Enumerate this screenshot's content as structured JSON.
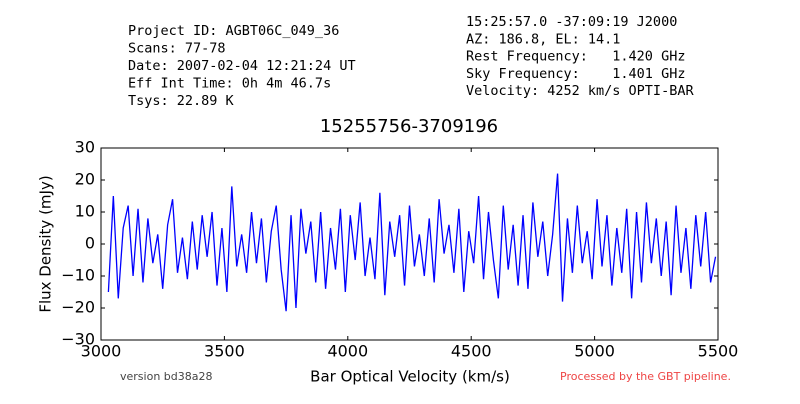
{
  "chart_data": {
    "type": "line",
    "header_left": [
      "Project ID: AGBT06C_049_36",
      "Scans: 77-78",
      "Date: 2007-02-04 12:21:24 UT",
      "Eff Int Time: 0h 4m 46.7s",
      "Tsys: 22.89 K"
    ],
    "header_right": [
      "15:25:57.0 -37:09:19 J2000",
      "AZ: 186.8, EL: 14.1",
      "Rest Frequency:   1.420 GHz",
      "Sky Frequency:    1.401 GHz",
      "Velocity: 4252 km/s OPTI-BAR"
    ],
    "title": "15255756-3709196",
    "xlabel": "Bar Optical Velocity (km/s)",
    "ylabel": "Flux Density (mJy)",
    "footer_left": "version bd38a28",
    "footer_right": "Processed by the GBT pipeline.",
    "xlim": [
      3000,
      5500
    ],
    "xticks": [
      3000,
      3500,
      4000,
      4500,
      5000,
      5500
    ],
    "ylim": [
      -30,
      30
    ],
    "yticks": [
      {
        "value": -30,
        "label": "−30"
      },
      {
        "value": -20,
        "label": "−20"
      },
      {
        "value": -10,
        "label": "−10"
      },
      0,
      10,
      20,
      30
    ],
    "x": [
      3030,
      3050,
      3070,
      3090,
      3110,
      3130,
      3150,
      3170,
      3190,
      3210,
      3230,
      3250,
      3270,
      3290,
      3310,
      3330,
      3350,
      3370,
      3390,
      3410,
      3430,
      3450,
      3470,
      3490,
      3510,
      3530,
      3550,
      3570,
      3590,
      3610,
      3630,
      3650,
      3670,
      3690,
      3710,
      3730,
      3750,
      3770,
      3790,
      3810,
      3830,
      3850,
      3870,
      3890,
      3910,
      3930,
      3950,
      3970,
      3990,
      4010,
      4030,
      4050,
      4070,
      4090,
      4110,
      4130,
      4150,
      4170,
      4190,
      4210,
      4230,
      4250,
      4270,
      4290,
      4310,
      4330,
      4350,
      4370,
      4390,
      4410,
      4430,
      4450,
      4470,
      4490,
      4510,
      4530,
      4550,
      4570,
      4590,
      4610,
      4630,
      4650,
      4670,
      4690,
      4710,
      4730,
      4750,
      4770,
      4790,
      4810,
      4830,
      4850,
      4870,
      4890,
      4910,
      4930,
      4950,
      4970,
      4990,
      5010,
      5030,
      5050,
      5070,
      5090,
      5110,
      5130,
      5150,
      5170,
      5190,
      5210,
      5230,
      5250,
      5270,
      5290,
      5310,
      5330,
      5350,
      5370,
      5390,
      5410,
      5430,
      5450,
      5470,
      5490
    ],
    "series": [
      {
        "color": "#0000ff",
        "values": [
          -15,
          15,
          -17,
          5,
          12,
          -10,
          11,
          -12,
          8,
          -6,
          3,
          -14,
          6,
          14,
          -9,
          2,
          -11,
          7,
          -8,
          9,
          -4,
          10,
          -13,
          5,
          -15,
          18,
          -7,
          3,
          -9,
          10,
          -6,
          8,
          -12,
          4,
          12,
          -8,
          -21,
          9,
          -20,
          11,
          -3,
          7,
          -12,
          10,
          -14,
          5,
          -8,
          11,
          -15,
          9,
          -5,
          13,
          -10,
          2,
          -11,
          16,
          -16,
          7,
          -4,
          9,
          -13,
          12,
          -7,
          3,
          -10,
          8,
          -12,
          14,
          -3,
          6,
          -9,
          11,
          -15,
          4,
          -6,
          15,
          -11,
          10,
          -5,
          -17,
          12,
          -8,
          6,
          -13,
          9,
          -14,
          13,
          -4,
          7,
          -10,
          3,
          22,
          -18,
          8,
          -9,
          12,
          -6,
          4,
          -11,
          14,
          -7,
          9,
          -13,
          5,
          -9,
          11,
          -17,
          10,
          -12,
          13,
          -6,
          8,
          -10,
          7,
          -16,
          12,
          -9,
          5,
          -14,
          9,
          -7,
          10,
          -12,
          -4
        ]
      }
    ]
  }
}
